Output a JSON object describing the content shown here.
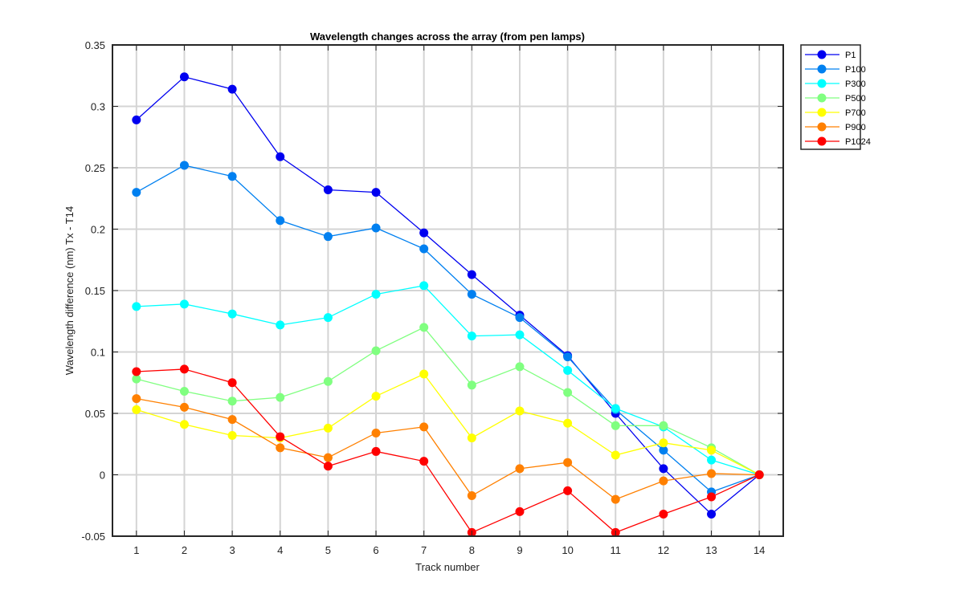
{
  "chart_data": {
    "type": "line",
    "title": "Wavelength changes across the array (from pen lamps)",
    "xlabel": "Track number",
    "ylabel": "Wavelength difference (nm) Tx - T14",
    "x": [
      1,
      2,
      3,
      4,
      5,
      6,
      7,
      8,
      9,
      10,
      11,
      12,
      13,
      14
    ],
    "xlim": [
      0.5,
      14.5
    ],
    "ylim": [
      -0.05,
      0.35
    ],
    "xticks": [
      "1",
      "2",
      "3",
      "4",
      "5",
      "6",
      "7",
      "8",
      "9",
      "10",
      "11",
      "12",
      "13",
      "14"
    ],
    "yticks": [
      "-0.05",
      "0",
      "0.05",
      "0.1",
      "0.15",
      "0.2",
      "0.25",
      "0.3",
      "0.35"
    ],
    "ytick_values": [
      -0.05,
      0,
      0.05,
      0.1,
      0.15,
      0.2,
      0.25,
      0.3,
      0.35
    ],
    "grid": true,
    "legend_position": "outside-top-right",
    "series": [
      {
        "name": "P1",
        "color": "#0000f0",
        "values": [
          0.289,
          0.324,
          0.314,
          0.259,
          0.232,
          0.23,
          0.197,
          0.163,
          0.13,
          0.097,
          0.05,
          0.005,
          -0.032,
          0.0
        ]
      },
      {
        "name": "P100",
        "color": "#0080f0",
        "values": [
          0.23,
          0.252,
          0.243,
          0.207,
          0.194,
          0.201,
          0.184,
          0.147,
          0.128,
          0.096,
          0.053,
          0.02,
          -0.014,
          0.0
        ]
      },
      {
        "name": "P300",
        "color": "#00ffff",
        "values": [
          0.137,
          0.139,
          0.131,
          0.122,
          0.128,
          0.147,
          0.154,
          0.113,
          0.114,
          0.085,
          0.054,
          0.039,
          0.012,
          0.0
        ]
      },
      {
        "name": "P500",
        "color": "#80ff80",
        "values": [
          0.078,
          0.068,
          0.06,
          0.063,
          0.076,
          0.101,
          0.12,
          0.073,
          0.088,
          0.067,
          0.04,
          0.04,
          0.022,
          0.0
        ]
      },
      {
        "name": "P700",
        "color": "#ffff00",
        "values": [
          0.053,
          0.041,
          0.032,
          0.03,
          0.038,
          0.064,
          0.082,
          0.03,
          0.052,
          0.042,
          0.016,
          0.026,
          0.02,
          0.0
        ]
      },
      {
        "name": "P900",
        "color": "#ff8000",
        "values": [
          0.062,
          0.055,
          0.045,
          0.022,
          0.014,
          0.034,
          0.039,
          -0.017,
          0.005,
          0.01,
          -0.02,
          -0.005,
          0.001,
          0.0
        ]
      },
      {
        "name": "P1024",
        "color": "#ff0000",
        "values": [
          0.084,
          0.086,
          0.075,
          0.031,
          0.007,
          0.019,
          0.011,
          -0.047,
          -0.03,
          -0.013,
          -0.047,
          -0.032,
          -0.018,
          0.0
        ]
      }
    ]
  }
}
